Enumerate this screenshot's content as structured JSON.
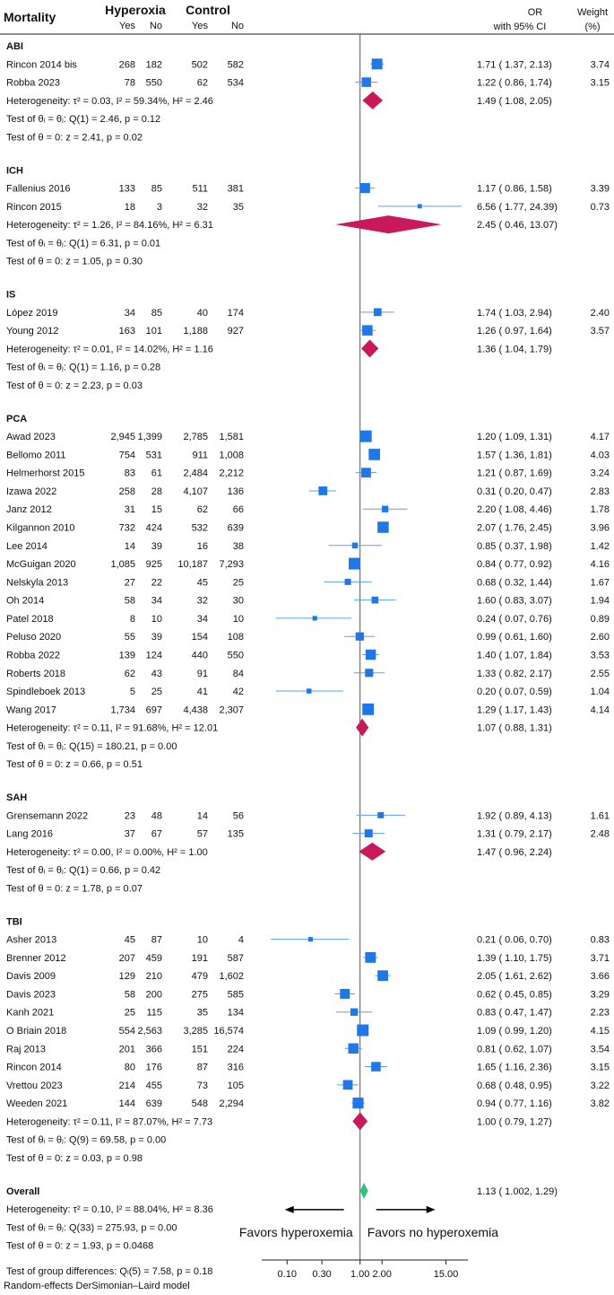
{
  "chart_data": {
    "type": "forest",
    "title": "Mortality",
    "column_headers": {
      "hyperoxia": "Hyperoxia",
      "control": "Control",
      "yes": "Yes",
      "no": "No",
      "or_line1": "OR",
      "or_line2": "with 95% CI",
      "weight_line1": "Weight",
      "weight_line2": "(%)"
    },
    "x_axis": {
      "scale": "log",
      "ticks": [
        0.1,
        0.3,
        1,
        2,
        15
      ],
      "tick_labels": [
        "0.10",
        "0.30",
        "1.00",
        "2.00",
        "15.00"
      ],
      "xlim": [
        0.045,
        30
      ]
    },
    "colors": {
      "study_marker": "#1f77e8",
      "ci_line": "#5aa0f0",
      "subgroup_diamond": "#c8195a",
      "overall_diamond": "#2ec27e",
      "null_line": "#555555"
    },
    "favors": {
      "left": "Favors hyperoxemia",
      "right": "Favors no hyperoxemia"
    },
    "model_note": "Random-effects DerSimonian–Laird model",
    "group_differences": "Test of group differences: Qₗ(5) = 7.58, p = 0.18",
    "subgroups": [
      {
        "name": "ABI",
        "studies": [
          {
            "study": "Rincon 2014 bis",
            "h_yes": "268",
            "h_no": "182",
            "c_yes": "502",
            "c_no": "582",
            "or": 1.71,
            "lo": 1.37,
            "hi": 2.13,
            "label": "1.71 ( 1.37,   2.13)",
            "weight": "3.74"
          },
          {
            "study": "Robba 2023",
            "h_yes": "78",
            "h_no": "550",
            "c_yes": "62",
            "c_no": "534",
            "or": 1.22,
            "lo": 0.86,
            "hi": 1.74,
            "label": "1.22 ( 0.86,   1.74)",
            "weight": "3.15"
          }
        ],
        "pooled": {
          "or": 1.49,
          "lo": 1.08,
          "hi": 2.05,
          "label": "1.49 ( 1.08,   2.05)"
        },
        "heterogeneity": "Heterogeneity: τ² = 0.03, I² = 59.34%, H² = 2.46",
        "test_homogeneity": "Test of θᵢ = θⱼ: Q(1) = 2.46, p = 0.12",
        "test_effect": "Test of θ = 0: z = 2.41, p = 0.02"
      },
      {
        "name": "ICH",
        "studies": [
          {
            "study": "Fallenius 2016",
            "h_yes": "133",
            "h_no": "85",
            "c_yes": "511",
            "c_no": "381",
            "or": 1.17,
            "lo": 0.86,
            "hi": 1.58,
            "label": "1.17 ( 0.86,   1.58)",
            "weight": "3.39"
          },
          {
            "study": "Rincon 2015",
            "h_yes": "18",
            "h_no": "3",
            "c_yes": "32",
            "c_no": "35",
            "or": 6.56,
            "lo": 1.77,
            "hi": 24.39,
            "label": "6.56 ( 1.77, 24.39)",
            "weight": "0.73"
          }
        ],
        "pooled": {
          "or": 2.45,
          "lo": 0.46,
          "hi": 13.07,
          "label": "2.45 ( 0.46, 13.07)"
        },
        "heterogeneity": "Heterogeneity: τ² = 1.26, I² = 84.16%, H² = 6.31",
        "test_homogeneity": "Test of θᵢ = θⱼ: Q(1) = 6.31, p = 0.01",
        "test_effect": "Test of θ = 0: z = 1.05, p = 0.30"
      },
      {
        "name": "IS",
        "studies": [
          {
            "study": "López 2019",
            "h_yes": "34",
            "h_no": "85",
            "c_yes": "40",
            "c_no": "174",
            "or": 1.74,
            "lo": 1.03,
            "hi": 2.94,
            "label": "1.74 ( 1.03,   2.94)",
            "weight": "2.40"
          },
          {
            "study": "Young 2012",
            "h_yes": "163",
            "h_no": "101",
            "c_yes": "1,188",
            "c_no": "927",
            "or": 1.26,
            "lo": 0.97,
            "hi": 1.64,
            "label": "1.26 ( 0.97,   1.64)",
            "weight": "3.57"
          }
        ],
        "pooled": {
          "or": 1.36,
          "lo": 1.04,
          "hi": 1.79,
          "label": "1.36 ( 1.04,   1.79)"
        },
        "heterogeneity": "Heterogeneity: τ² = 0.01, I² = 14.02%, H² = 1.16",
        "test_homogeneity": "Test of θᵢ = θⱼ: Q(1) = 1.16, p = 0.28",
        "test_effect": "Test of θ = 0: z = 2.23, p = 0.03"
      },
      {
        "name": "PCA",
        "studies": [
          {
            "study": "Awad 2023",
            "h_yes": "2,945",
            "h_no": "1,399",
            "c_yes": "2,785",
            "c_no": "1,581",
            "or": 1.2,
            "lo": 1.09,
            "hi": 1.31,
            "label": "1.20 ( 1.09,   1.31)",
            "weight": "4.17"
          },
          {
            "study": "Bellomo 2011",
            "h_yes": "754",
            "h_no": "531",
            "c_yes": "911",
            "c_no": "1,008",
            "or": 1.57,
            "lo": 1.36,
            "hi": 1.81,
            "label": "1.57 ( 1.36,   1.81)",
            "weight": "4.03"
          },
          {
            "study": "Helmerhorst 2015",
            "h_yes": "83",
            "h_no": "61",
            "c_yes": "2,484",
            "c_no": "2,212",
            "or": 1.21,
            "lo": 0.87,
            "hi": 1.69,
            "label": "1.21 ( 0.87,   1.69)",
            "weight": "3.24"
          },
          {
            "study": "Izawa 2022",
            "h_yes": "258",
            "h_no": "28",
            "c_yes": "4,107",
            "c_no": "136",
            "or": 0.31,
            "lo": 0.2,
            "hi": 0.47,
            "label": "0.31 ( 0.20,   0.47)",
            "weight": "2.83"
          },
          {
            "study": "Janz 2012",
            "h_yes": "31",
            "h_no": "15",
            "c_yes": "62",
            "c_no": "66",
            "or": 2.2,
            "lo": 1.08,
            "hi": 4.46,
            "label": "2.20 ( 1.08,   4.46)",
            "weight": "1.78"
          },
          {
            "study": "Kilgannon 2010",
            "h_yes": "732",
            "h_no": "424",
            "c_yes": "532",
            "c_no": "639",
            "or": 2.07,
            "lo": 1.76,
            "hi": 2.45,
            "label": "2.07 ( 1.76,   2.45)",
            "weight": "3.96"
          },
          {
            "study": "Lee 2014",
            "h_yes": "14",
            "h_no": "39",
            "c_yes": "16",
            "c_no": "38",
            "or": 0.85,
            "lo": 0.37,
            "hi": 1.98,
            "label": "0.85 ( 0.37,   1.98)",
            "weight": "1.42"
          },
          {
            "study": "McGuigan 2020",
            "h_yes": "1,085",
            "h_no": "925",
            "c_yes": "10,187",
            "c_no": "7,293",
            "or": 0.84,
            "lo": 0.77,
            "hi": 0.92,
            "label": "0.84 ( 0.77,   0.92)",
            "weight": "4.16"
          },
          {
            "study": "Nelskyla 2013",
            "h_yes": "27",
            "h_no": "22",
            "c_yes": "45",
            "c_no": "25",
            "or": 0.68,
            "lo": 0.32,
            "hi": 1.44,
            "label": "0.68 ( 0.32,   1.44)",
            "weight": "1.67"
          },
          {
            "study": "Oh 2014",
            "h_yes": "58",
            "h_no": "34",
            "c_yes": "32",
            "c_no": "30",
            "or": 1.6,
            "lo": 0.83,
            "hi": 3.07,
            "label": "1.60 ( 0.83,   3.07)",
            "weight": "1.94"
          },
          {
            "study": "Patel 2018",
            "h_yes": "8",
            "h_no": "10",
            "c_yes": "34",
            "c_no": "10",
            "or": 0.24,
            "lo": 0.07,
            "hi": 0.76,
            "label": "0.24 ( 0.07,   0.76)",
            "weight": "0.89"
          },
          {
            "study": "Peluso 2020",
            "h_yes": "55",
            "h_no": "39",
            "c_yes": "154",
            "c_no": "108",
            "or": 0.99,
            "lo": 0.61,
            "hi": 1.6,
            "label": "0.99 ( 0.61,   1.60)",
            "weight": "2.60"
          },
          {
            "study": "Robba 2022",
            "h_yes": "139",
            "h_no": "124",
            "c_yes": "440",
            "c_no": "550",
            "or": 1.4,
            "lo": 1.07,
            "hi": 1.84,
            "label": "1.40 ( 1.07,   1.84)",
            "weight": "3.53"
          },
          {
            "study": "Roberts 2018",
            "h_yes": "62",
            "h_no": "43",
            "c_yes": "91",
            "c_no": "84",
            "or": 1.33,
            "lo": 0.82,
            "hi": 2.17,
            "label": "1.33 ( 0.82,   2.17)",
            "weight": "2.55"
          },
          {
            "study": "Spindleboek 2013",
            "h_yes": "5",
            "h_no": "25",
            "c_yes": "41",
            "c_no": "42",
            "or": 0.2,
            "lo": 0.07,
            "hi": 0.59,
            "label": "0.20 ( 0.07,   0.59)",
            "weight": "1.04"
          },
          {
            "study": "Wang 2017",
            "h_yes": "1,734",
            "h_no": "697",
            "c_yes": "4,438",
            "c_no": "2,307",
            "or": 1.29,
            "lo": 1.17,
            "hi": 1.43,
            "label": "1.29 ( 1.17,   1.43)",
            "weight": "4.14"
          }
        ],
        "pooled": {
          "or": 1.07,
          "lo": 0.88,
          "hi": 1.31,
          "label": "1.07 ( 0.88,   1.31)"
        },
        "heterogeneity": "Heterogeneity: τ² = 0.11, I² = 91.68%, H² = 12.01",
        "test_homogeneity": "Test of θᵢ = θⱼ: Q(15) = 180.21, p = 0.00",
        "test_effect": "Test of θ = 0: z = 0.66, p = 0.51"
      },
      {
        "name": "SAH",
        "studies": [
          {
            "study": "Grensemann 2022",
            "h_yes": "23",
            "h_no": "48",
            "c_yes": "14",
            "c_no": "56",
            "or": 1.92,
            "lo": 0.89,
            "hi": 4.13,
            "label": "1.92 ( 0.89,   4.13)",
            "weight": "1.61"
          },
          {
            "study": "Lang 2016",
            "h_yes": "37",
            "h_no": "67",
            "c_yes": "57",
            "c_no": "135",
            "or": 1.31,
            "lo": 0.79,
            "hi": 2.17,
            "label": "1.31 ( 0.79,   2.17)",
            "weight": "2.48"
          }
        ],
        "pooled": {
          "or": 1.47,
          "lo": 0.96,
          "hi": 2.24,
          "label": "1.47 ( 0.96,   2.24)"
        },
        "heterogeneity": "Heterogeneity: τ² = 0.00, I² = 0.00%, H² = 1.00",
        "test_homogeneity": "Test of θᵢ = θⱼ: Q(1) = 0.66, p = 0.42",
        "test_effect": "Test of θ = 0: z = 1.78, p = 0.07"
      },
      {
        "name": "TBI",
        "studies": [
          {
            "study": "Asher 2013",
            "h_yes": "45",
            "h_no": "87",
            "c_yes": "10",
            "c_no": "4",
            "or": 0.21,
            "lo": 0.06,
            "hi": 0.7,
            "label": "0.21 ( 0.06,   0.70)",
            "weight": "0.83"
          },
          {
            "study": "Brenner 2012",
            "h_yes": "207",
            "h_no": "459",
            "c_yes": "191",
            "c_no": "587",
            "or": 1.39,
            "lo": 1.1,
            "hi": 1.75,
            "label": "1.39 ( 1.10,   1.75)",
            "weight": "3.71"
          },
          {
            "study": "Davis 2009",
            "h_yes": "129",
            "h_no": "210",
            "c_yes": "479",
            "c_no": "1,602",
            "or": 2.05,
            "lo": 1.61,
            "hi": 2.62,
            "label": "2.05 ( 1.61,   2.62)",
            "weight": "3.66"
          },
          {
            "study": "Davis 2023",
            "h_yes": "58",
            "h_no": "200",
            "c_yes": "275",
            "c_no": "585",
            "or": 0.62,
            "lo": 0.45,
            "hi": 0.85,
            "label": "0.62 ( 0.45,   0.85)",
            "weight": "3.29"
          },
          {
            "study": "Kanh 2021",
            "h_yes": "25",
            "h_no": "115",
            "c_yes": "35",
            "c_no": "134",
            "or": 0.83,
            "lo": 0.47,
            "hi": 1.47,
            "label": "0.83 ( 0.47,   1.47)",
            "weight": "2.23"
          },
          {
            "study": "O Briain 2018",
            "h_yes": "554",
            "h_no": "2,563",
            "c_yes": "3,285",
            "c_no": "16,574",
            "or": 1.09,
            "lo": 0.99,
            "hi": 1.2,
            "label": "1.09 ( 0.99,   1.20)",
            "weight": "4.15"
          },
          {
            "study": "Raj 2013",
            "h_yes": "201",
            "h_no": "366",
            "c_yes": "151",
            "c_no": "224",
            "or": 0.81,
            "lo": 0.62,
            "hi": 1.07,
            "label": "0.81 ( 0.62,   1.07)",
            "weight": "3.54"
          },
          {
            "study": "Rincon 2014",
            "h_yes": "80",
            "h_no": "176",
            "c_yes": "87",
            "c_no": "316",
            "or": 1.65,
            "lo": 1.16,
            "hi": 2.36,
            "label": "1.65 ( 1.16,   2.36)",
            "weight": "3.15"
          },
          {
            "study": "Vrettou 2023",
            "h_yes": "214",
            "h_no": "455",
            "c_yes": "73",
            "c_no": "105",
            "or": 0.68,
            "lo": 0.48,
            "hi": 0.95,
            "label": "0.68 ( 0.48,   0.95)",
            "weight": "3.22"
          },
          {
            "study": "Weeden 2021",
            "h_yes": "144",
            "h_no": "639",
            "c_yes": "548",
            "c_no": "2,294",
            "or": 0.94,
            "lo": 0.77,
            "hi": 1.16,
            "label": "0.94 ( 0.77,   1.16)",
            "weight": "3.82"
          }
        ],
        "pooled": {
          "or": 1.0,
          "lo": 0.79,
          "hi": 1.27,
          "label": "1.00 ( 0.79,   1.27)"
        },
        "heterogeneity": "Heterogeneity: τ² = 0.11, I² = 87.07%, H² = 7.73",
        "test_homogeneity": "Test of θᵢ = θⱼ: Q(9) = 69.58, p = 0.00",
        "test_effect": "Test of θ = 0: z = 0.03, p = 0.98"
      }
    ],
    "overall": {
      "name": "Overall",
      "or": 1.13,
      "lo": 1.002,
      "hi": 1.29,
      "label": "1.13 ( 1.002,  1.29)",
      "heterogeneity": "Heterogeneity: τ² = 0.10, I² = 88.04%, H² = 8.36",
      "test_homogeneity": "Test of θᵢ = θⱼ: Q(33) = 275.93, p = 0.00",
      "test_effect": "Test of θ = 0: z = 1.93, p = 0.0468"
    }
  }
}
